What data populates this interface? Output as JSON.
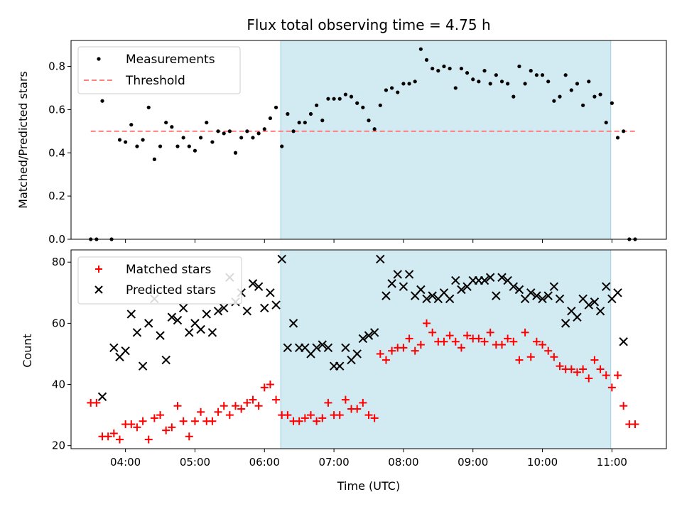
{
  "chart_data": [
    {
      "type": "scatter",
      "title": "Flux total observing time = 4.75 h",
      "xlabel": "",
      "ylabel": "Matched/Predicted stars",
      "xlim": [
        "03:13",
        "11:47"
      ],
      "ylim": [
        0,
        0.92
      ],
      "yticks": [
        "0.0",
        "0.2",
        "0.4",
        "0.6",
        "0.8"
      ],
      "ytick_values": [
        0,
        0.2,
        0.4,
        0.6,
        0.8
      ],
      "shaded_region": {
        "start": "06:14",
        "end": "10:59",
        "color": "#add8e6"
      },
      "legend": {
        "position": "top-left",
        "entries": [
          "Measurements",
          "Threshold"
        ]
      },
      "series": [
        {
          "name": "Measurements",
          "color": "#000000",
          "marker": "dot",
          "x": [
            "03:30",
            "03:35",
            "03:40",
            "03:48",
            "03:55",
            "04:00",
            "04:05",
            "04:10",
            "04:15",
            "04:20",
            "04:25",
            "04:30",
            "04:35",
            "04:40",
            "04:45",
            "04:50",
            "04:55",
            "05:00",
            "05:05",
            "05:10",
            "05:15",
            "05:20",
            "05:25",
            "05:30",
            "05:35",
            "05:40",
            "05:45",
            "05:50",
            "05:55",
            "06:00",
            "06:05",
            "06:10",
            "06:15",
            "06:20",
            "06:25",
            "06:30",
            "06:35",
            "06:40",
            "06:45",
            "06:50",
            "06:55",
            "07:00",
            "07:05",
            "07:10",
            "07:15",
            "07:20",
            "07:25",
            "07:30",
            "07:35",
            "07:40",
            "07:45",
            "07:50",
            "07:55",
            "08:00",
            "08:05",
            "08:10",
            "08:15",
            "08:20",
            "08:25",
            "08:30",
            "08:35",
            "08:40",
            "08:45",
            "08:50",
            "08:55",
            "09:00",
            "09:05",
            "09:10",
            "09:15",
            "09:20",
            "09:25",
            "09:30",
            "09:35",
            "09:40",
            "09:45",
            "09:50",
            "09:55",
            "10:00",
            "10:05",
            "10:10",
            "10:15",
            "10:20",
            "10:25",
            "10:30",
            "10:35",
            "10:40",
            "10:45",
            "10:50",
            "10:55",
            "11:00",
            "11:05",
            "11:10",
            "11:15",
            "11:20"
          ],
          "y": [
            0.0,
            0.0,
            0.64,
            0.0,
            0.46,
            0.45,
            0.53,
            0.43,
            0.46,
            0.61,
            0.37,
            0.43,
            0.54,
            0.52,
            0.43,
            0.47,
            0.43,
            0.41,
            0.47,
            0.54,
            0.45,
            0.5,
            0.49,
            0.5,
            0.4,
            0.47,
            0.5,
            0.47,
            0.49,
            0.51,
            0.56,
            0.61,
            0.43,
            0.58,
            0.5,
            0.54,
            0.54,
            0.58,
            0.62,
            0.55,
            0.65,
            0.65,
            0.65,
            0.67,
            0.66,
            0.63,
            0.61,
            0.55,
            0.51,
            0.62,
            0.69,
            0.7,
            0.68,
            0.72,
            0.72,
            0.73,
            0.88,
            0.83,
            0.79,
            0.78,
            0.8,
            0.79,
            0.7,
            0.79,
            0.77,
            0.74,
            0.73,
            0.78,
            0.72,
            0.76,
            0.73,
            0.72,
            0.66,
            0.8,
            0.72,
            0.78,
            0.76,
            0.76,
            0.73,
            0.64,
            0.66,
            0.76,
            0.69,
            0.72,
            0.62,
            0.73,
            0.66,
            0.67,
            0.54,
            0.63,
            0.47,
            0.5,
            0.0,
            0.0
          ]
        },
        {
          "name": "Threshold",
          "color": "#ff7f7f",
          "style": "dashed",
          "x": [
            "03:30",
            "11:20"
          ],
          "y": [
            0.5,
            0.5
          ]
        }
      ]
    },
    {
      "type": "scatter",
      "title": "",
      "xlabel": "Time (UTC)",
      "ylabel": "Count",
      "xlim": [
        "03:13",
        "11:47"
      ],
      "ylim": [
        19,
        84
      ],
      "xticks": [
        "04:00",
        "05:00",
        "06:00",
        "07:00",
        "08:00",
        "09:00",
        "10:00",
        "11:00"
      ],
      "yticks": [
        "20",
        "40",
        "60",
        "80"
      ],
      "ytick_values": [
        20,
        40,
        60,
        80
      ],
      "shaded_region": {
        "start": "06:14",
        "end": "10:59",
        "color": "#add8e6"
      },
      "legend": {
        "position": "top-left",
        "entries": [
          "Matched stars",
          "Predicted stars"
        ]
      },
      "series": [
        {
          "name": "Matched stars",
          "color": "#ff0000",
          "marker": "plus",
          "x": [
            "03:30",
            "03:35",
            "03:40",
            "03:45",
            "03:50",
            "03:55",
            "04:00",
            "04:05",
            "04:10",
            "04:15",
            "04:20",
            "04:25",
            "04:30",
            "04:35",
            "04:40",
            "04:45",
            "04:50",
            "04:55",
            "05:00",
            "05:05",
            "05:10",
            "05:15",
            "05:20",
            "05:25",
            "05:30",
            "05:35",
            "05:40",
            "05:45",
            "05:50",
            "05:55",
            "06:00",
            "06:05",
            "06:10",
            "06:15",
            "06:20",
            "06:25",
            "06:30",
            "06:35",
            "06:40",
            "06:45",
            "06:50",
            "06:55",
            "07:00",
            "07:05",
            "07:10",
            "07:15",
            "07:20",
            "07:25",
            "07:30",
            "07:35",
            "07:40",
            "07:45",
            "07:50",
            "07:55",
            "08:00",
            "08:05",
            "08:10",
            "08:15",
            "08:20",
            "08:25",
            "08:30",
            "08:35",
            "08:40",
            "08:45",
            "08:50",
            "08:55",
            "09:00",
            "09:05",
            "09:10",
            "09:15",
            "09:20",
            "09:25",
            "09:30",
            "09:35",
            "09:40",
            "09:45",
            "09:50",
            "09:55",
            "10:00",
            "10:05",
            "10:10",
            "10:15",
            "10:20",
            "10:25",
            "10:30",
            "10:35",
            "10:40",
            "10:45",
            "10:50",
            "10:55",
            "11:00",
            "11:05",
            "11:10",
            "11:15",
            "11:20"
          ],
          "y": [
            34,
            34,
            23,
            23,
            24,
            22,
            27,
            27,
            26,
            28,
            22,
            29,
            30,
            25,
            26,
            33,
            28,
            23,
            28,
            31,
            28,
            28,
            31,
            33,
            30,
            33,
            32,
            34,
            35,
            33,
            39,
            40,
            35,
            30,
            30,
            28,
            28,
            29,
            30,
            28,
            29,
            34,
            30,
            30,
            35,
            32,
            32,
            34,
            30,
            29,
            50,
            48,
            51,
            52,
            52,
            55,
            51,
            53,
            60,
            57,
            54,
            54,
            56,
            54,
            52,
            56,
            55,
            55,
            54,
            57,
            53,
            53,
            55,
            54,
            48,
            57,
            49,
            54,
            53,
            51,
            49,
            46,
            45,
            45,
            44,
            45,
            42,
            48,
            45,
            43,
            39,
            43,
            33,
            27,
            27
          ]
        },
        {
          "name": "Predicted stars",
          "color": "#000000",
          "marker": "x",
          "x": [
            "03:40",
            "03:50",
            "03:55",
            "04:00",
            "04:05",
            "04:10",
            "04:15",
            "04:20",
            "04:25",
            "04:30",
            "04:35",
            "04:40",
            "04:45",
            "04:50",
            "04:55",
            "05:00",
            "05:05",
            "05:10",
            "05:15",
            "05:20",
            "05:25",
            "05:30",
            "05:35",
            "05:40",
            "05:45",
            "05:50",
            "05:55",
            "06:00",
            "06:05",
            "06:10",
            "06:15",
            "06:20",
            "06:25",
            "06:30",
            "06:35",
            "06:40",
            "06:45",
            "06:50",
            "06:55",
            "07:00",
            "07:05",
            "07:10",
            "07:15",
            "07:20",
            "07:25",
            "07:30",
            "07:35",
            "07:40",
            "07:45",
            "07:50",
            "07:55",
            "08:00",
            "08:05",
            "08:10",
            "08:15",
            "08:20",
            "08:25",
            "08:30",
            "08:35",
            "08:40",
            "08:45",
            "08:50",
            "08:55",
            "09:00",
            "09:05",
            "09:10",
            "09:15",
            "09:20",
            "09:25",
            "09:30",
            "09:35",
            "09:40",
            "09:45",
            "09:50",
            "09:55",
            "10:00",
            "10:05",
            "10:10",
            "10:15",
            "10:20",
            "10:25",
            "10:30",
            "10:35",
            "10:40",
            "10:45",
            "10:50",
            "10:55",
            "11:00",
            "11:05",
            "11:10"
          ],
          "y": [
            36,
            52,
            49,
            51,
            63,
            57,
            46,
            60,
            68,
            56,
            48,
            62,
            61,
            65,
            57,
            60,
            58,
            63,
            57,
            64,
            65,
            75,
            67,
            70,
            64,
            73,
            72,
            65,
            70,
            66,
            81,
            52,
            60,
            52,
            52,
            50,
            52,
            53,
            52,
            46,
            46,
            52,
            48,
            50,
            55,
            56,
            57,
            81,
            69,
            73,
            76,
            72,
            76,
            69,
            71,
            68,
            69,
            68,
            70,
            68,
            74,
            71,
            72,
            74,
            74,
            74,
            75,
            69,
            75,
            74,
            72,
            71,
            68,
            70,
            69,
            68,
            69,
            72,
            68,
            60,
            64,
            62,
            68,
            66,
            67,
            64,
            72,
            68,
            70,
            54
          ]
        }
      ]
    }
  ]
}
